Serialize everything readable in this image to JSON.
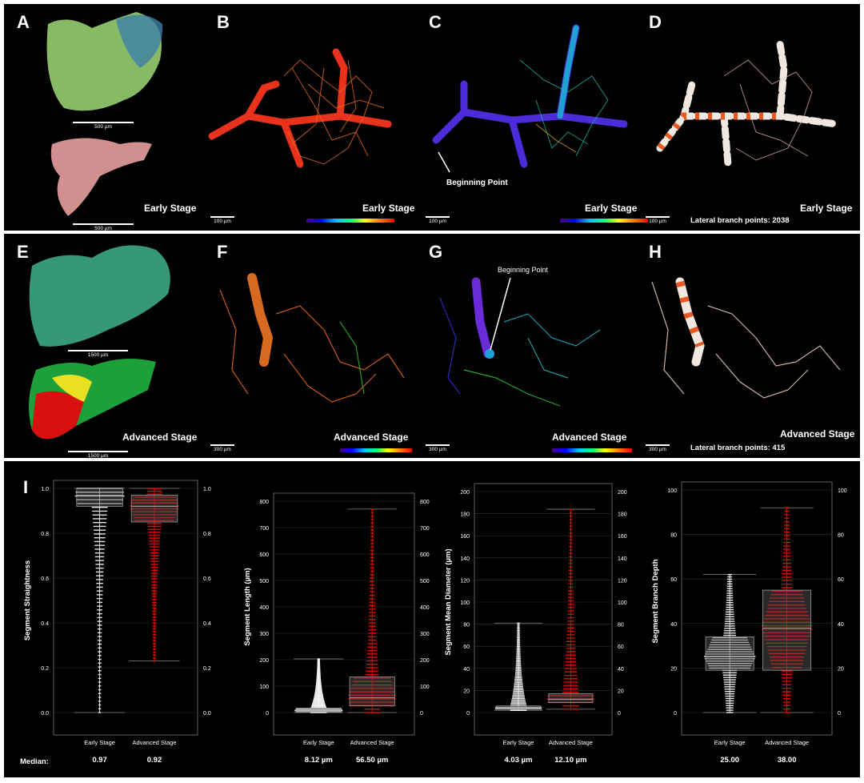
{
  "panels_row1": [
    {
      "letter": "A",
      "stage": "Early Stage",
      "scalebars": [
        "500 µm",
        "500 µm"
      ]
    },
    {
      "letter": "B",
      "stage": "Early Stage",
      "scalebars": [
        "100 µm"
      ]
    },
    {
      "letter": "C",
      "stage": "Early Stage",
      "scalebars": [
        "100 µm"
      ],
      "annotation": "Beginning Point"
    },
    {
      "letter": "D",
      "stage": "Early Stage",
      "scalebars": [
        "100 µm"
      ],
      "branch_points": "Lateral branch points: 2038"
    }
  ],
  "panels_row2": [
    {
      "letter": "E",
      "stage": "Advanced Stage",
      "scalebars": [
        "1500 µm",
        "1500 µm"
      ]
    },
    {
      "letter": "F",
      "stage": "Advanced Stage",
      "scalebars": [
        "300 µm"
      ]
    },
    {
      "letter": "G",
      "stage": "Advanced Stage",
      "scalebars": [
        "300 µm"
      ],
      "annotation": "Beginning Point"
    },
    {
      "letter": "H",
      "stage": "Advanced Stage",
      "scalebars": [
        "300 µm"
      ],
      "branch_points": "Lateral branch points: 415"
    }
  ],
  "panel_I": {
    "letter": "I",
    "median_label": "Median:"
  },
  "colors": {
    "early": "#ffffff",
    "advanced": "#ff0000",
    "background": "#000000"
  },
  "chart_data": [
    {
      "type": "box",
      "ylabel": "Segment Straightness",
      "categories": [
        "Early Stage",
        "Advanced Stage"
      ],
      "ylim": [
        0,
        1
      ],
      "yticks": [
        "0.0",
        "0.2",
        "0.4",
        "0.6",
        "0.8",
        "1.0"
      ],
      "series": [
        {
          "name": "Early Stage",
          "q1": 0.92,
          "median": 0.97,
          "q3": 1.0,
          "min": 0.0,
          "max": 1.0
        },
        {
          "name": "Advanced Stage",
          "q1": 0.85,
          "median": 0.92,
          "q3": 0.97,
          "min": 0.23,
          "max": 1.0
        }
      ],
      "medians": [
        "0.97",
        "0.92"
      ]
    },
    {
      "type": "box",
      "ylabel": "Segment Length (µm)",
      "categories": [
        "Early Stage",
        "Advanced Stage"
      ],
      "ylim": [
        0,
        800
      ],
      "yticks": [
        "0",
        "100",
        "200",
        "300",
        "400",
        "500",
        "600",
        "700",
        "800"
      ],
      "series": [
        {
          "name": "Early Stage",
          "q1": 3,
          "median": 8.12,
          "q3": 17,
          "min": 0,
          "max": 203
        },
        {
          "name": "Advanced Stage",
          "q1": 25,
          "median": 56.5,
          "q3": 135,
          "min": 0,
          "max": 770
        }
      ],
      "medians": [
        "8.12 µm",
        "56.50 µm"
      ]
    },
    {
      "type": "box",
      "ylabel": "Segment Mean Diameter (µm)",
      "categories": [
        "Early Stage",
        "Advanced Stage"
      ],
      "ylim": [
        0,
        200
      ],
      "yticks": [
        "0",
        "20",
        "40",
        "60",
        "80",
        "100",
        "120",
        "140",
        "160",
        "180",
        "200"
      ],
      "series": [
        {
          "name": "Early Stage",
          "q1": 3,
          "median": 4.03,
          "q3": 6,
          "min": 2,
          "max": 81
        },
        {
          "name": "Advanced Stage",
          "q1": 9,
          "median": 12.1,
          "q3": 17,
          "min": 3,
          "max": 184
        }
      ],
      "medians": [
        "4.03 µm",
        "12.10 µm"
      ]
    },
    {
      "type": "box",
      "ylabel": "Segment Branch Depth",
      "categories": [
        "Early Stage",
        "Advanced Stage"
      ],
      "ylim": [
        0,
        100
      ],
      "yticks": [
        "0",
        "20",
        "40",
        "60",
        "80",
        "100"
      ],
      "series": [
        {
          "name": "Early Stage",
          "q1": 19,
          "median": 25,
          "q3": 34,
          "min": 0,
          "max": 62
        },
        {
          "name": "Advanced Stage",
          "q1": 19,
          "median": 38,
          "q3": 55,
          "min": 0,
          "max": 92
        }
      ],
      "medians": [
        "25.00",
        "38.00"
      ]
    }
  ]
}
